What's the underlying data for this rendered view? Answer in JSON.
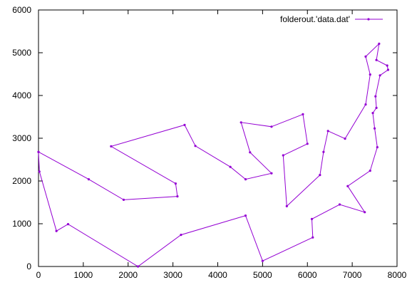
{
  "chart_data": {
    "type": "line",
    "title": "",
    "xlabel": "",
    "ylabel": "",
    "xlim": [
      0,
      8000
    ],
    "ylim": [
      0,
      6000
    ],
    "xticks": [
      0,
      1000,
      2000,
      3000,
      4000,
      5000,
      6000,
      7000,
      8000
    ],
    "yticks": [
      0,
      1000,
      2000,
      3000,
      4000,
      5000,
      6000
    ],
    "grid": false,
    "legend_position": "top-right",
    "series": [
      {
        "name": "folderout.'data.dat'",
        "color": "#9400d3",
        "marker": "point",
        "points": [
          [
            0,
            2680
          ],
          [
            1120,
            2040
          ],
          [
            1900,
            1560
          ],
          [
            3100,
            1640
          ],
          [
            3060,
            1940
          ],
          [
            1620,
            2810
          ],
          [
            3260,
            3310
          ],
          [
            3500,
            2820
          ],
          [
            4280,
            2330
          ],
          [
            4620,
            2040
          ],
          [
            5200,
            2180
          ],
          [
            4720,
            2670
          ],
          [
            4520,
            3370
          ],
          [
            5200,
            3270
          ],
          [
            5900,
            3560
          ],
          [
            6000,
            2870
          ],
          [
            5460,
            2600
          ],
          [
            5540,
            1410
          ],
          [
            6280,
            2140
          ],
          [
            6360,
            2680
          ],
          [
            6460,
            3170
          ],
          [
            6840,
            2990
          ],
          [
            7300,
            3790
          ],
          [
            7400,
            4490
          ],
          [
            7300,
            4910
          ],
          [
            7600,
            5210
          ],
          [
            7540,
            4830
          ],
          [
            7780,
            4700
          ],
          [
            7800,
            4600
          ],
          [
            7620,
            4470
          ],
          [
            7520,
            3980
          ],
          [
            7540,
            3710
          ],
          [
            7460,
            3590
          ],
          [
            7500,
            3230
          ],
          [
            7560,
            2790
          ],
          [
            7400,
            2240
          ],
          [
            6900,
            1880
          ],
          [
            7280,
            1270
          ],
          [
            6720,
            1450
          ],
          [
            6100,
            1110
          ],
          [
            6120,
            680
          ],
          [
            5000,
            130
          ],
          [
            4620,
            1190
          ],
          [
            3180,
            740
          ],
          [
            2220,
            0
          ],
          [
            660,
            990
          ],
          [
            400,
            830
          ],
          [
            20,
            2220
          ],
          [
            0,
            2680
          ]
        ]
      }
    ]
  }
}
